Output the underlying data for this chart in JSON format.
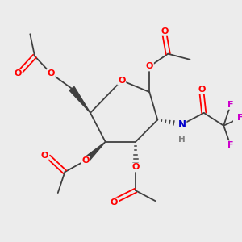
{
  "bg_color": "#ececec",
  "atom_colors": {
    "O": "#ff0000",
    "N": "#0000cc",
    "F": "#cc00cc",
    "C": "#404040",
    "H": "#808080"
  },
  "bond_color": "#404040"
}
